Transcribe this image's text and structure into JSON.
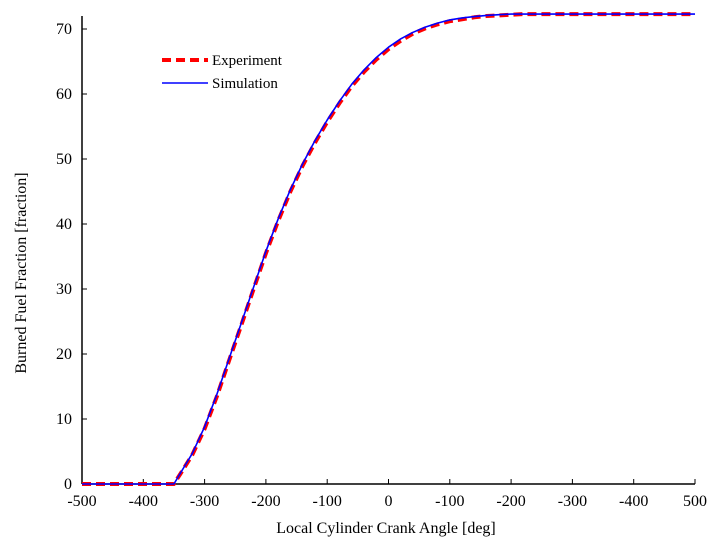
{
  "chart_data": {
    "type": "line",
    "title": "",
    "xlabel": "Local Cylinder Crank Angle [deg]",
    "ylabel": "Burned Fuel Fraction [fraction]",
    "xlim": [
      -500,
      500
    ],
    "ylim": [
      0,
      72
    ],
    "x_tick_labels": [
      "-500",
      "-400",
      "-300",
      "-200",
      "-100",
      "0",
      "-100",
      "-200",
      "-300",
      "-400",
      "500"
    ],
    "y_tick_labels": [
      "0",
      "10",
      "20",
      "30",
      "40",
      "50",
      "60",
      "70"
    ],
    "y_ticks": [
      0,
      10,
      20,
      30,
      40,
      50,
      60,
      70
    ],
    "grid": false,
    "legend_position": "top-left",
    "series": [
      {
        "name": "Experiment",
        "color": "#ff0000",
        "style": "dashed",
        "x": [
          -500,
          -350,
          -340,
          -320,
          -300,
          -280,
          -260,
          -240,
          -220,
          -200,
          -180,
          -160,
          -140,
          -120,
          -100,
          -80,
          -60,
          -40,
          -20,
          0,
          20,
          40,
          60,
          80,
          100,
          120,
          140,
          160,
          180,
          200,
          220,
          240,
          260,
          300,
          400,
          500
        ],
        "y": [
          0,
          0,
          1.5,
          4.5,
          8.5,
          13.5,
          19,
          24.5,
          30,
          35.5,
          40.5,
          45,
          49,
          52.5,
          55.7,
          58.6,
          61.2,
          63.4,
          65.3,
          66.9,
          68.2,
          69.3,
          70.1,
          70.7,
          71.2,
          71.5,
          71.8,
          72,
          72.1,
          72.2,
          72.3,
          72.3,
          72.3,
          72.3,
          72.3,
          72.3
        ]
      },
      {
        "name": "Simulation",
        "color": "#0000ff",
        "style": "solid",
        "x": [
          -500,
          -350,
          -340,
          -320,
          -300,
          -280,
          -260,
          -240,
          -220,
          -200,
          -180,
          -160,
          -140,
          -120,
          -100,
          -80,
          -60,
          -40,
          -20,
          0,
          20,
          40,
          60,
          80,
          100,
          120,
          140,
          160,
          180,
          200,
          220,
          240,
          260,
          300,
          400,
          500
        ],
        "y": [
          0,
          0,
          1.6,
          4.7,
          8.8,
          13.8,
          19.3,
          24.8,
          30.3,
          35.8,
          40.8,
          45.3,
          49.3,
          52.8,
          56,
          58.9,
          61.5,
          63.7,
          65.6,
          67.2,
          68.5,
          69.5,
          70.3,
          70.9,
          71.4,
          71.7,
          71.9,
          72.1,
          72.2,
          72.3,
          72.3,
          72.3,
          72.3,
          72.3,
          72.3,
          72.3
        ]
      }
    ]
  }
}
